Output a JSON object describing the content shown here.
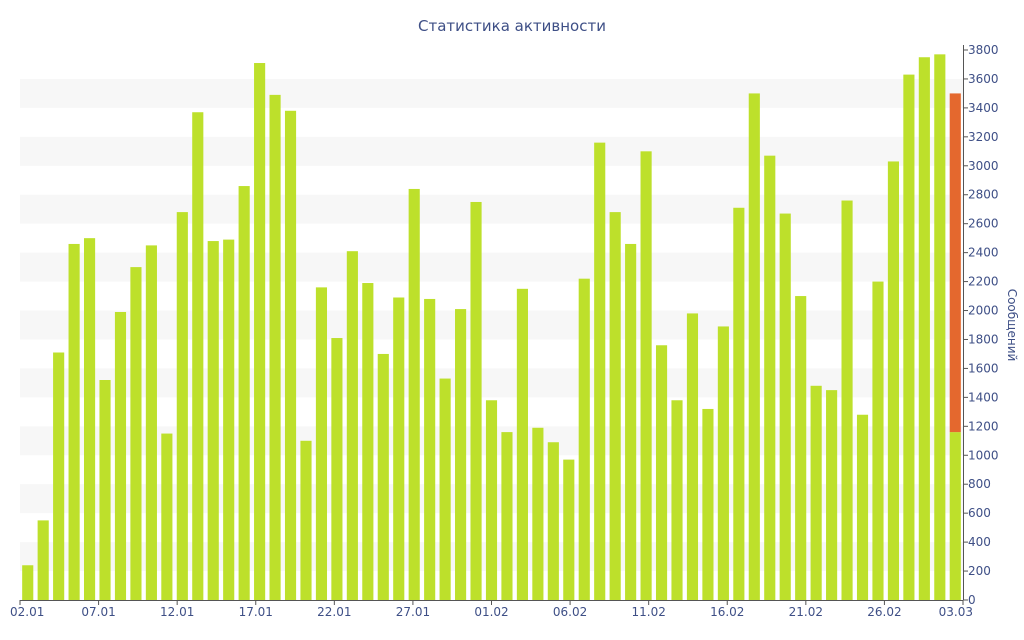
{
  "colors": {
    "bar": "#bde02b",
    "highlight": "#e4682e",
    "band": "#f7f7f7",
    "axis": "#555555",
    "text": "#3e4f86"
  },
  "chart_data": {
    "type": "bar",
    "title": "Статистика активности",
    "ylabel": "Сообщений",
    "xlabel": "",
    "ylim": [
      0,
      3800
    ],
    "yticks": [
      0,
      200,
      400,
      600,
      800,
      1000,
      1200,
      1400,
      1600,
      1800,
      2000,
      2200,
      2400,
      2600,
      2800,
      3000,
      3200,
      3400,
      3600,
      3800
    ],
    "grid": "alternating horizontal bands",
    "legend": "none",
    "categories": [
      "02.01",
      "03.01",
      "04.01",
      "05.01",
      "06.01",
      "07.01",
      "08.01",
      "09.01",
      "10.01",
      "11.01",
      "12.01",
      "13.01",
      "14.01",
      "15.01",
      "16.01",
      "17.01",
      "18.01",
      "19.01",
      "20.01",
      "21.01",
      "22.01",
      "23.01",
      "24.01",
      "25.01",
      "26.01",
      "27.01",
      "28.01",
      "29.01",
      "30.01",
      "31.01",
      "01.02",
      "02.02",
      "03.02",
      "04.02",
      "05.02",
      "06.02",
      "07.02",
      "08.02",
      "09.02",
      "10.02",
      "11.02",
      "12.02",
      "13.02",
      "14.02",
      "15.02",
      "16.02",
      "17.02",
      "18.02",
      "19.02",
      "20.02",
      "21.02",
      "22.02",
      "23.02",
      "24.02",
      "25.02",
      "26.02",
      "27.02",
      "28.02",
      "01.03",
      "02.03",
      "03.03"
    ],
    "xtick_labels": [
      "02.01",
      "07.01",
      "12.01",
      "17.01",
      "22.01",
      "27.01",
      "01.02",
      "06.02",
      "11.02",
      "16.02",
      "21.02",
      "26.02",
      "03.03"
    ],
    "values": [
      240,
      550,
      1710,
      2460,
      2500,
      1520,
      1990,
      2300,
      2450,
      1150,
      2680,
      3370,
      2480,
      2490,
      2860,
      3710,
      3490,
      3380,
      1100,
      2160,
      1810,
      2410,
      2190,
      1700,
      2090,
      2840,
      2080,
      1530,
      2010,
      2750,
      1380,
      1160,
      2150,
      1190,
      1090,
      970,
      2220,
      3160,
      2680,
      2460,
      3100,
      1760,
      1380,
      1980,
      1320,
      1890,
      2710,
      3500,
      3070,
      2670,
      2100,
      1480,
      1450,
      2760,
      1280,
      2200,
      3030,
      3630,
      3750,
      3770,
      1160
    ],
    "highlight": {
      "category": "03.03",
      "from": 1160,
      "to": 3500
    }
  }
}
